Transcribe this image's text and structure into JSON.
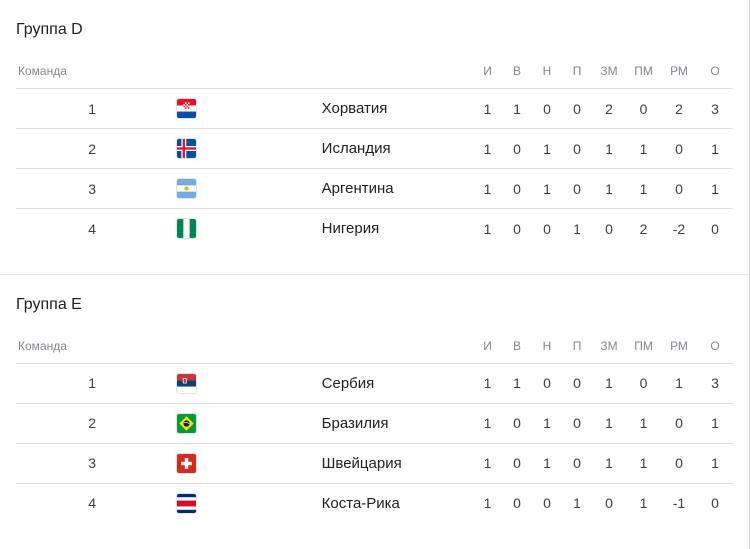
{
  "columns": {
    "team": "Команда",
    "stats": [
      "И",
      "В",
      "Н",
      "П",
      "ЗМ",
      "ПМ",
      "РМ",
      "О"
    ]
  },
  "groups": [
    {
      "title": "Группа D",
      "rows": [
        {
          "rank": "1",
          "team": "Хорватия",
          "flag_icon": "flag-croatia",
          "stats": [
            "1",
            "1",
            "0",
            "0",
            "2",
            "0",
            "2",
            "3"
          ]
        },
        {
          "rank": "2",
          "team": "Исландия",
          "flag_icon": "flag-iceland",
          "stats": [
            "1",
            "0",
            "1",
            "0",
            "1",
            "1",
            "0",
            "1"
          ]
        },
        {
          "rank": "3",
          "team": "Аргентина",
          "flag_icon": "flag-argentina",
          "stats": [
            "1",
            "0",
            "1",
            "0",
            "1",
            "1",
            "0",
            "1"
          ]
        },
        {
          "rank": "4",
          "team": "Нигерия",
          "flag_icon": "flag-nigeria",
          "stats": [
            "1",
            "0",
            "0",
            "1",
            "0",
            "2",
            "-2",
            "0"
          ]
        }
      ]
    },
    {
      "title": "Группа E",
      "rows": [
        {
          "rank": "1",
          "team": "Сербия",
          "flag_icon": "flag-serbia",
          "stats": [
            "1",
            "1",
            "0",
            "0",
            "1",
            "0",
            "1",
            "3"
          ]
        },
        {
          "rank": "2",
          "team": "Бразилия",
          "flag_icon": "flag-brazil",
          "stats": [
            "1",
            "0",
            "1",
            "0",
            "1",
            "1",
            "0",
            "1"
          ]
        },
        {
          "rank": "3",
          "team": "Швейцария",
          "flag_icon": "flag-switzerland",
          "stats": [
            "1",
            "0",
            "1",
            "0",
            "1",
            "1",
            "0",
            "1"
          ]
        },
        {
          "rank": "4",
          "team": "Коста-Рика",
          "flag_icon": "flag-costa-rica",
          "stats": [
            "1",
            "0",
            "0",
            "1",
            "0",
            "1",
            "-1",
            "0"
          ]
        }
      ]
    }
  ],
  "colors": {
    "heading_text": "#202124",
    "column_header_text": "#82878c",
    "stat_text": "#3c4043",
    "team_text": "#202124",
    "row_divider": "#e0e0e0",
    "section_divider": "#e3e3e3",
    "page_edge": "#dadce0"
  }
}
